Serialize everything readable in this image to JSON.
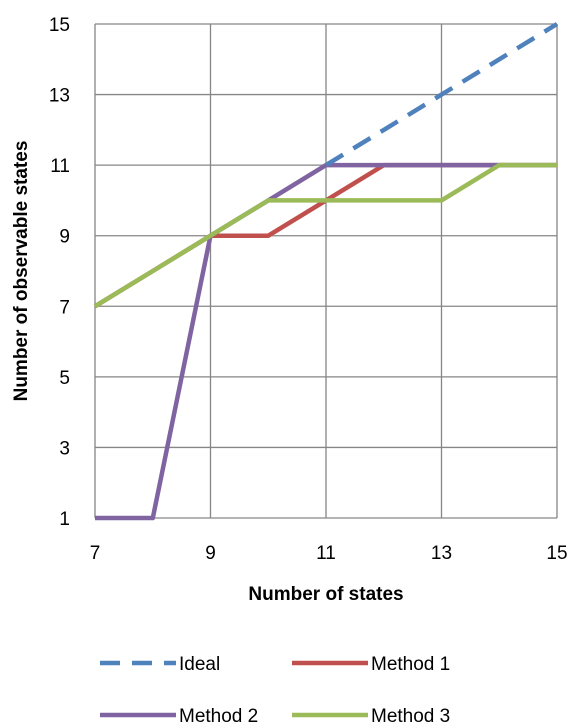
{
  "chart_data": {
    "type": "line",
    "title": "",
    "xlabel": "Number of states",
    "ylabel": "Number of observable states",
    "xlim": [
      7,
      15
    ],
    "ylim": [
      1,
      15
    ],
    "xticks": [
      7,
      9,
      11,
      13,
      15
    ],
    "yticks": [
      1,
      3,
      5,
      7,
      9,
      11,
      13,
      15
    ],
    "grid": true,
    "legend_position": "bottom",
    "series": [
      {
        "name": "Ideal",
        "color": "#4F81BD",
        "dash": "dashed",
        "x": [
          7,
          8,
          9,
          10,
          11,
          12,
          13,
          14,
          15
        ],
        "y": [
          7,
          8,
          9,
          10,
          11,
          12,
          13,
          14,
          15
        ]
      },
      {
        "name": "Method 1",
        "color": "#C0504D",
        "dash": "solid",
        "x": [
          7,
          8,
          9,
          10,
          11,
          12,
          13,
          14,
          15
        ],
        "y": [
          7,
          8,
          9,
          9,
          10,
          11,
          11,
          11,
          11
        ]
      },
      {
        "name": "Method 2",
        "color": "#8064A2",
        "dash": "solid",
        "x": [
          7,
          8,
          9,
          10,
          11,
          12,
          13,
          14,
          15
        ],
        "y": [
          1,
          1,
          9,
          10,
          11,
          11,
          11,
          11,
          11
        ]
      },
      {
        "name": "Method 3",
        "color": "#9BBB59",
        "dash": "solid",
        "x": [
          7,
          8,
          9,
          10,
          11,
          12,
          13,
          14,
          15
        ],
        "y": [
          7,
          8,
          9,
          10,
          10,
          10,
          10,
          11,
          11
        ]
      }
    ]
  }
}
